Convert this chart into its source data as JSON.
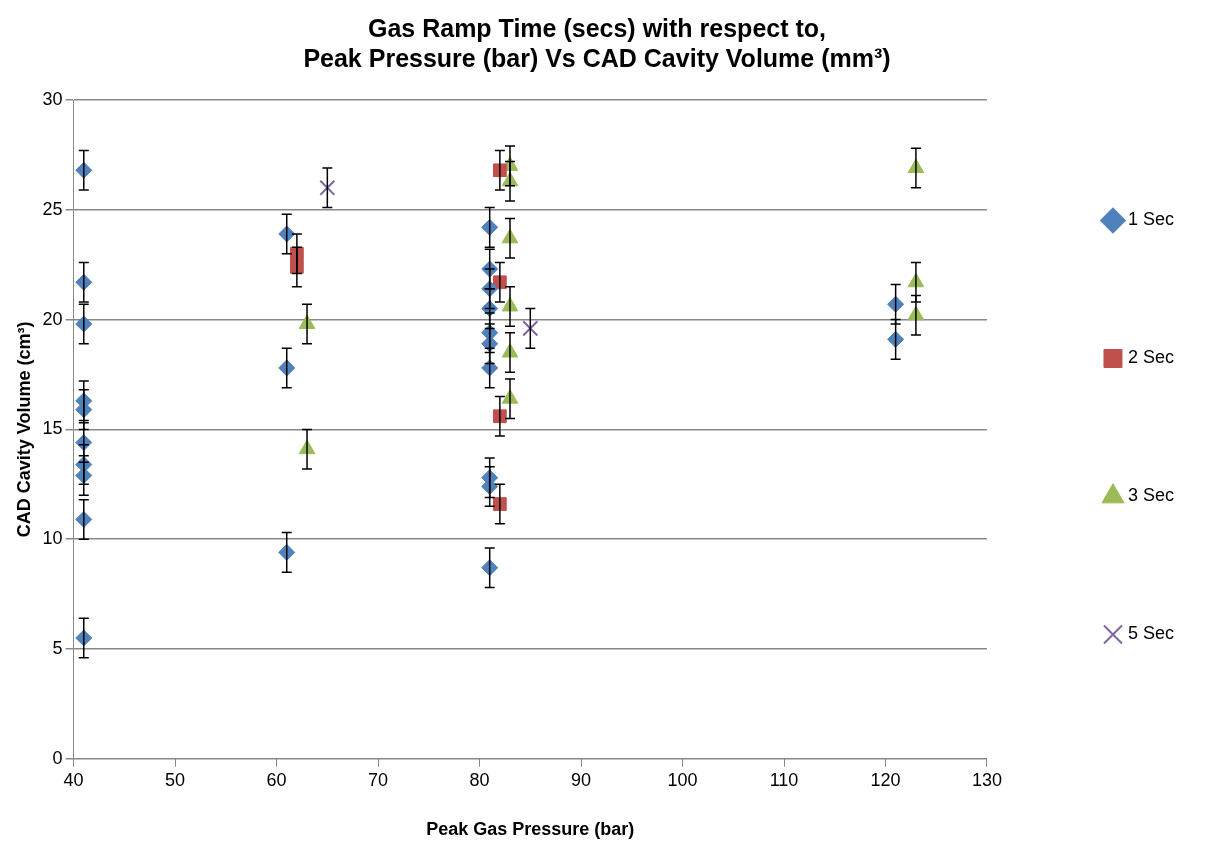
{
  "chart_data": {
    "type": "scatter",
    "title": [
      "Gas Ramp Time (secs) with respect to,",
      "Peak Pressure (bar) Vs CAD Cavity Volume (mm³)"
    ],
    "xlabel": "Peak Gas Pressure (bar)",
    "ylabel": "CAD Cavity Volume (cm³)",
    "xlim": [
      40,
      130
    ],
    "xticks": [
      40,
      50,
      60,
      70,
      80,
      90,
      100,
      110,
      120,
      130
    ],
    "ylim": [
      0,
      30
    ],
    "yticks": [
      0,
      5,
      10,
      15,
      20,
      25,
      30
    ],
    "grid": "y",
    "legend": "right",
    "series": [
      {
        "name": "1 Sec",
        "color": "#4f81bd",
        "marker": "diamond",
        "x": [
          41,
          41,
          41,
          41,
          41,
          41,
          41,
          41,
          41,
          41,
          61,
          61,
          61,
          81,
          81,
          81,
          81,
          81,
          81,
          81,
          81,
          81,
          81,
          121,
          121
        ],
        "values": [
          26.8,
          21.7,
          19.8,
          16.3,
          15.9,
          14.4,
          13.4,
          12.9,
          10.9,
          5.5,
          23.9,
          17.8,
          9.4,
          24.2,
          22.3,
          21.4,
          20.5,
          19.4,
          18.9,
          17.8,
          12.8,
          12.4,
          8.7,
          20.7,
          19.1
        ],
        "errors": [
          0.9,
          0.9,
          0.9,
          0.9,
          0.9,
          0.9,
          0.9,
          0.9,
          0.9,
          0.9,
          0.9,
          0.9,
          0.9,
          0.9,
          0.9,
          0.9,
          0.9,
          0.9,
          0.9,
          0.9,
          0.9,
          0.9,
          0.9,
          0.9,
          0.9
        ]
      },
      {
        "name": "2 Sec",
        "color": "#c0504d",
        "marker": "square",
        "x": [
          62,
          62,
          82,
          82,
          82,
          82
        ],
        "values": [
          23.0,
          22.4,
          26.8,
          21.7,
          15.6,
          11.6
        ],
        "errors": [
          0.9,
          0.9,
          0.9,
          0.9,
          0.9,
          0.9
        ]
      },
      {
        "name": "3 Sec",
        "color": "#9bbb59",
        "marker": "triangle",
        "x": [
          63,
          63,
          83,
          83,
          83,
          83,
          83,
          83,
          123,
          123,
          123
        ],
        "values": [
          19.8,
          14.1,
          27.0,
          26.3,
          23.7,
          20.6,
          18.5,
          16.4,
          26.9,
          21.7,
          20.2
        ],
        "errors": [
          0.9,
          0.9,
          0.9,
          0.9,
          0.9,
          0.9,
          0.9,
          0.9,
          0.9,
          0.9,
          0.9
        ]
      },
      {
        "name": "5 Sec",
        "color": "#8064a2",
        "marker": "cross",
        "x": [
          65,
          85
        ],
        "values": [
          26.0,
          19.6
        ],
        "errors": [
          0.9,
          0.9
        ]
      }
    ]
  }
}
